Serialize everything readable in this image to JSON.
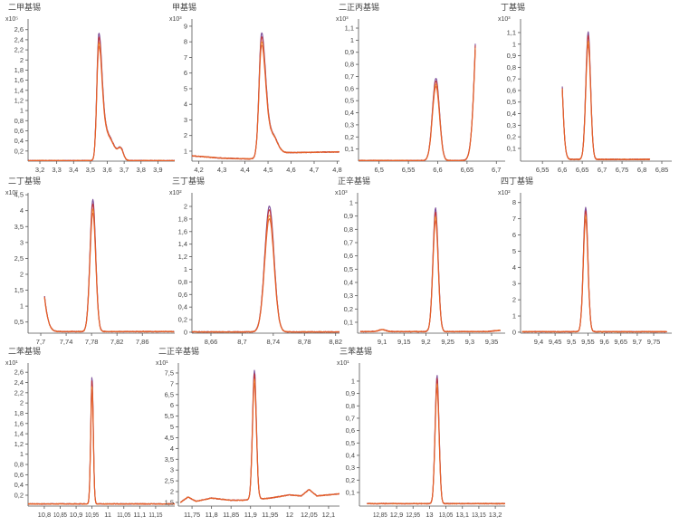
{
  "chart_data": {
    "type": "line",
    "series_colors": [
      "#6e3a8e",
      "#c62d2d",
      "#ef8a2e",
      "#e35a2a"
    ],
    "panels": [
      {
        "title": "二甲基锡",
        "ylabel_multiplier": "x10⁵",
        "xlim": [
          3.13,
          4.0
        ],
        "ylim": [
          0,
          2.81
        ],
        "xticks": [
          3.2,
          3.3,
          3.4,
          3.5,
          3.6,
          3.7,
          3.8,
          3.9
        ],
        "yticks": [
          0.2,
          0.4,
          0.6,
          0.8,
          1,
          1.2,
          1.4,
          1.6,
          1.8,
          2,
          2.2,
          2.4,
          2.6
        ],
        "trace_range": [
          3.13,
          4.0
        ],
        "baseline": [
          [
            3.13,
            0.01
          ],
          [
            4.0,
            0.01
          ]
        ],
        "peaks": [
          [
            3.55,
            2.5,
            0.012,
            0.02
          ],
          [
            3.6,
            0.5,
            0.02,
            0.04
          ],
          [
            3.68,
            0.2,
            0.015,
            0.015
          ]
        ]
      },
      {
        "title": "甲基锡",
        "ylabel_multiplier": "x10³",
        "xlim": [
          4.17,
          4.81
        ],
        "ylim": [
          0.36,
          9.46
        ],
        "xticks": [
          4.2,
          4.3,
          4.4,
          4.5,
          4.6,
          4.7,
          4.8
        ],
        "yticks": [
          1,
          2,
          3,
          4,
          5,
          6,
          7,
          8,
          9
        ],
        "trace_range": [
          4.17,
          4.81
        ],
        "baseline": [
          [
            4.17,
            0.7
          ],
          [
            4.3,
            0.55
          ],
          [
            4.42,
            0.5
          ],
          [
            4.47,
            0.6
          ],
          [
            4.55,
            0.9
          ],
          [
            4.8,
            0.95
          ]
        ],
        "peaks": [
          [
            4.472,
            7.9,
            0.011,
            0.018
          ],
          [
            4.52,
            1.2,
            0.02,
            0.02
          ]
        ]
      },
      {
        "title": "二正丙基锡",
        "ylabel_multiplier": "x10³",
        "xlim": [
          6.465,
          6.715
        ],
        "ylim": [
          0,
          1.175
        ],
        "xticks": [
          6.5,
          6.55,
          6.6,
          6.65,
          6.7
        ],
        "yticks": [
          0.1,
          0.2,
          0.3,
          0.4,
          0.5,
          0.6,
          0.7,
          0.8,
          0.9,
          1,
          1.1
        ],
        "trace_range": [
          6.465,
          6.664
        ],
        "baseline": [
          [
            6.465,
            0.005
          ],
          [
            6.715,
            0.005
          ]
        ],
        "peaks": [
          [
            6.597,
            0.68,
            0.006,
            0.006
          ],
          [
            6.672,
            1.7,
            0.0075,
            0.006
          ]
        ]
      },
      {
        "title": "丁基锡",
        "ylabel_multiplier": "x10³",
        "xlim": [
          6.495,
          6.875
        ],
        "ylim": [
          -0.01,
          1.217
        ],
        "xticks": [
          6.55,
          6.6,
          6.65,
          6.7,
          6.75,
          6.8,
          6.85
        ],
        "yticks": [
          0.1,
          0.2,
          0.3,
          0.4,
          0.5,
          0.6,
          0.7,
          0.8,
          0.9,
          1,
          1.1
        ],
        "trace_range": [
          6.6,
          6.82
        ],
        "baseline": [
          [
            6.6,
            0.005
          ],
          [
            6.82,
            0.005
          ]
        ],
        "peaks": [
          [
            6.665,
            1.1,
            0.006,
            0.006
          ],
          [
            6.59,
            1.37,
            0.01,
            0.008
          ]
        ]
      },
      {
        "title": "二丁基锡",
        "ylabel_multiplier": "x10²",
        "xlim": [
          7.68,
          7.911
        ],
        "ylim": [
          0.15,
          4.56
        ],
        "xticks": [
          7.7,
          7.74,
          7.78,
          7.82,
          7.86
        ],
        "yticks": [
          0.5,
          1,
          1.5,
          2,
          2.5,
          3,
          3.5,
          4,
          4.5
        ],
        "trace_range": [
          7.706,
          7.91
        ],
        "baseline": [
          [
            7.706,
            0.2
          ],
          [
            7.91,
            0.2
          ]
        ],
        "peaks": [
          [
            7.782,
            4.15,
            0.0045,
            0.0045
          ],
          [
            7.69,
            4.0,
            0.01,
            0.01
          ]
        ]
      },
      {
        "title": "三丁基锡",
        "ylabel_multiplier": "x10²",
        "xlim": [
          8.6356,
          8.825
        ],
        "ylim": [
          -0.015,
          2.216
        ],
        "xticks": [
          8.66,
          8.7,
          8.74,
          8.78,
          8.82
        ],
        "yticks": [
          0,
          0.2,
          0.4,
          0.6,
          0.8,
          1,
          1.2,
          1.4,
          1.6,
          1.8,
          2
        ],
        "trace_range": [
          8.6356,
          8.825
        ],
        "baseline": [
          [
            8.6356,
            0.005
          ],
          [
            8.825,
            0.005
          ]
        ],
        "peaks": [
          [
            8.735,
            2.0,
            0.006,
            0.006
          ]
        ]
      },
      {
        "title": "正辛基锡",
        "ylabel_multiplier": "x10³",
        "xlim": [
          9.044,
          9.381
        ],
        "ylim": [
          0.018,
          1.075
        ],
        "xticks": [
          9.1,
          9.15,
          9.2,
          9.25,
          9.3,
          9.35
        ],
        "yticks": [
          0.1,
          0.2,
          0.3,
          0.4,
          0.5,
          0.6,
          0.7,
          0.8,
          0.9,
          1
        ],
        "trace_range": [
          9.05,
          9.37
        ],
        "baseline": [
          [
            9.05,
            0.03
          ],
          [
            9.34,
            0.03
          ],
          [
            9.37,
            0.04
          ]
        ],
        "peaks": [
          [
            9.222,
            0.93,
            0.006,
            0.006
          ],
          [
            9.1,
            0.015,
            0.008,
            0.008
          ]
        ]
      },
      {
        "title": "四丁基锡",
        "ylabel_multiplier": "x10²",
        "xlim": [
          9.345,
          9.805
        ],
        "ylim": [
          -0.06,
          8.6
        ],
        "xticks": [
          9.4,
          9.45,
          9.5,
          9.55,
          9.6,
          9.65,
          9.7,
          9.75
        ],
        "yticks": [
          0,
          1,
          2,
          3,
          4,
          5,
          6,
          7,
          8
        ],
        "trace_range": [
          9.35,
          9.79
        ],
        "baseline": [
          [
            9.35,
            0.03
          ],
          [
            9.79,
            0.03
          ]
        ],
        "peaks": [
          [
            9.543,
            7.7,
            0.007,
            0.007
          ]
        ]
      },
      {
        "title": "二苯基锡",
        "ylabel_multiplier": "x10¹",
        "xlim": [
          10.749,
          11.21
        ],
        "ylim": [
          -0.012,
          2.78
        ],
        "xticks": [
          10.8,
          10.85,
          10.9,
          10.95,
          11,
          11.05,
          11.1,
          11.15
        ],
        "yticks": [
          0.2,
          0.4,
          0.6,
          0.8,
          1,
          1.2,
          1.4,
          1.6,
          1.8,
          2,
          2.2,
          2.4,
          2.6
        ],
        "trace_range": [
          10.749,
          11.21
        ],
        "baseline": [
          [
            10.749,
            0.03
          ],
          [
            11.21,
            0.03
          ]
        ],
        "peaks": [
          [
            10.95,
            2.5,
            0.004,
            0.004
          ]
        ]
      },
      {
        "title": "二正辛基锡",
        "ylabel_multiplier": "x10¹",
        "xlim": [
          11.715,
          12.128
        ],
        "ylim": [
          1.33,
          7.96
        ],
        "xticks": [
          11.75,
          11.8,
          11.85,
          11.9,
          11.95,
          12,
          12.05,
          12.1
        ],
        "yticks": [
          1.5,
          2,
          2.5,
          3,
          3.5,
          4,
          4.5,
          5,
          5.5,
          6,
          6.5,
          7,
          7.5
        ],
        "trace_range": [
          11.72,
          12.128
        ],
        "baseline": [
          [
            11.72,
            1.5
          ],
          [
            11.74,
            1.75
          ],
          [
            11.76,
            1.55
          ],
          [
            11.8,
            1.7
          ],
          [
            11.85,
            1.6
          ],
          [
            11.88,
            1.6
          ],
          [
            11.95,
            1.7
          ],
          [
            12.0,
            1.85
          ],
          [
            12.03,
            1.8
          ],
          [
            12.05,
            2.1
          ],
          [
            12.07,
            1.8
          ],
          [
            12.1,
            1.85
          ],
          [
            12.128,
            1.9
          ]
        ],
        "peaks": [
          [
            11.91,
            6.0,
            0.005,
            0.005
          ]
        ]
      },
      {
        "title": "三苯基锡",
        "ylabel_multiplier": "x10¹",
        "xlim": [
          12.787,
          13.23
        ],
        "ylim": [
          -0.01,
          1.146
        ],
        "xticks": [
          12.85,
          12.9,
          12.95,
          13,
          13.05,
          13.1,
          13.15,
          13.2
        ],
        "yticks": [
          0.1,
          0.2,
          0.3,
          0.4,
          0.5,
          0.6,
          0.7,
          0.8,
          0.9,
          1
        ],
        "trace_range": [
          12.81,
          13.23
        ],
        "baseline": [
          [
            12.81,
            0.01
          ],
          [
            13.23,
            0.01
          ]
        ],
        "peaks": [
          [
            13.023,
            1.04,
            0.006,
            0.006
          ]
        ]
      }
    ]
  }
}
